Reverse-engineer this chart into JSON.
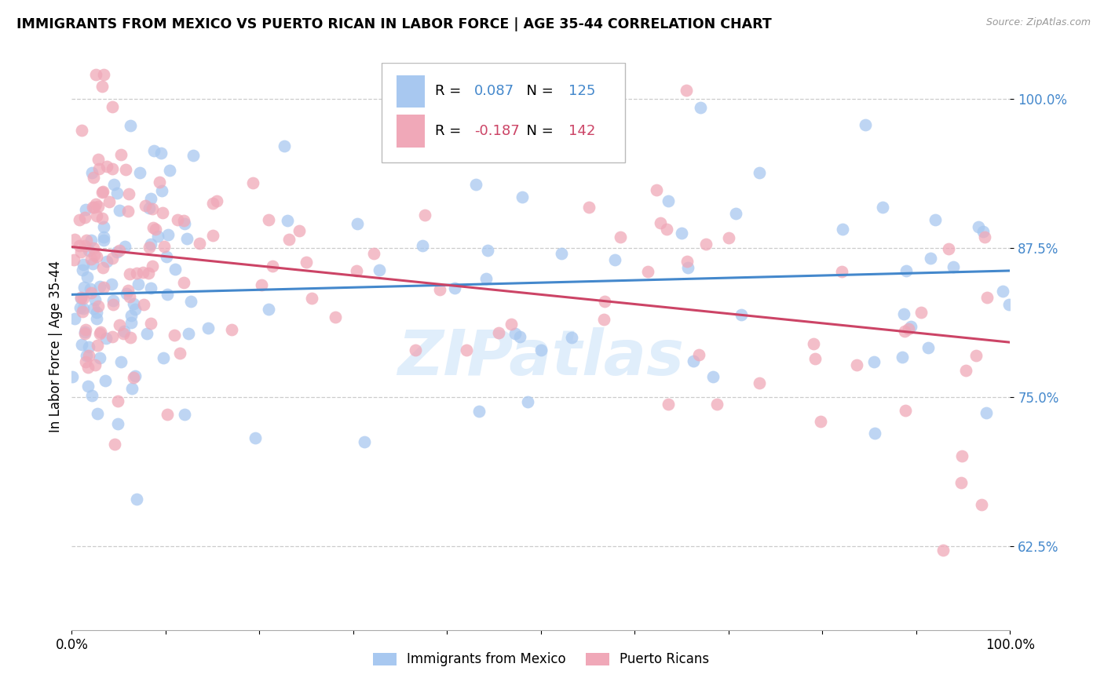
{
  "title": "IMMIGRANTS FROM MEXICO VS PUERTO RICAN IN LABOR FORCE | AGE 35-44 CORRELATION CHART",
  "source": "Source: ZipAtlas.com",
  "ylabel": "In Labor Force | Age 35-44",
  "ytick_values": [
    0.625,
    0.75,
    0.875,
    1.0
  ],
  "xlim": [
    0.0,
    1.0
  ],
  "ylim": [
    0.555,
    1.03
  ],
  "blue_color": "#A8C8F0",
  "pink_color": "#F0A8B8",
  "blue_line_color": "#4488CC",
  "pink_line_color": "#CC4466",
  "legend_R_blue": "0.087",
  "legend_N_blue": "125",
  "legend_R_pink": "-0.187",
  "legend_N_pink": "142",
  "watermark": "ZIPatlas",
  "blue_line_y0": 0.836,
  "blue_line_y1": 0.856,
  "pink_line_y0": 0.876,
  "pink_line_y1": 0.796
}
